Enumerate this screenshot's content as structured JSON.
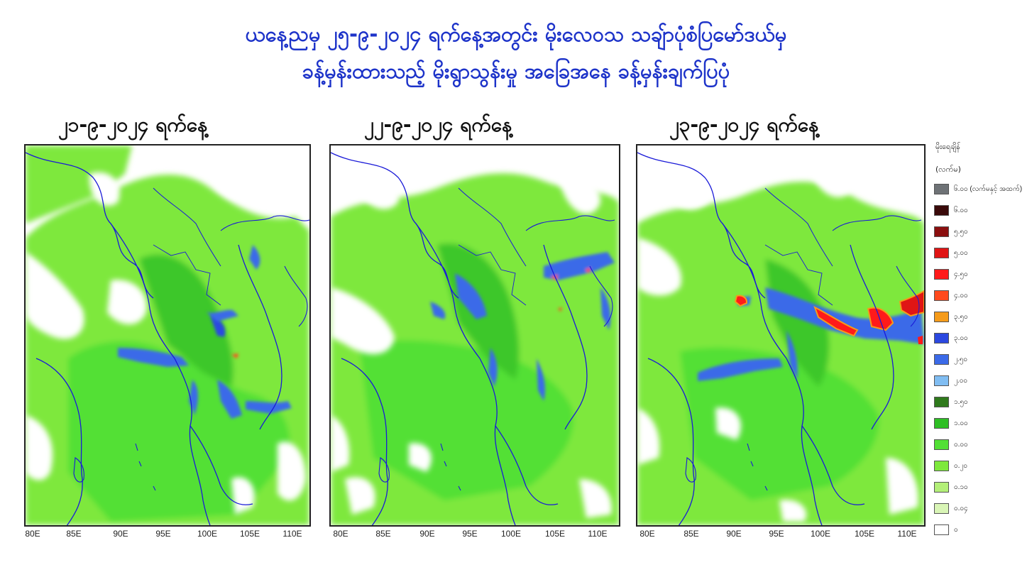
{
  "header": {
    "title_line1": "ယနေ့ညမှ ၂၅-၉-၂၀၂၄ ရက်နေ့အတွင်း မိုးလေဝသ သချ်ာပုံစံပြမော်ဒယ်မှ",
    "title_line2": "ခန့်မှန်းထားသည့် မိုးရွာသွန်းမှု အခြေအနေ ခန့်မှန်းချက်ပြပုံ"
  },
  "panels": [
    {
      "date_label": "၂၁-၉-၂၀၂၄ ရက်နေ့",
      "x_ticks": [
        "80E",
        "85E",
        "90E",
        "95E",
        "100E",
        "105E",
        "110E"
      ]
    },
    {
      "date_label": "၂၂-၉-၂၀၂၄ ရက်နေ့",
      "x_ticks": [
        "80E",
        "85E",
        "90E",
        "95E",
        "100E",
        "105E",
        "110E"
      ]
    },
    {
      "date_label": "၂၃-၉-၂၀၂၄ ရက်နေ့",
      "x_ticks": [
        "80E",
        "85E",
        "90E",
        "95E",
        "100E",
        "105E",
        "110E"
      ]
    }
  ],
  "legend": {
    "title": "မိုးရေချိန်",
    "unit": "(လက်မ)",
    "items": [
      {
        "label": "၆.၀၀ (လက်မနှင့် အထက်)",
        "color": "#6e7276"
      },
      {
        "label": "၆.၀၀",
        "color": "#3a0a0a"
      },
      {
        "label": "၅.၅၀",
        "color": "#8b0f0f"
      },
      {
        "label": "၅.၀၀",
        "color": "#e01515"
      },
      {
        "label": "၄.၅၀",
        "color": "#ff1a1a"
      },
      {
        "label": "၄.၀၀",
        "color": "#ff4a1e"
      },
      {
        "label": "၃.၅၀",
        "color": "#f59b1a"
      },
      {
        "label": "၃.၀၀",
        "color": "#2b48e0"
      },
      {
        "label": "၂.၅၀",
        "color": "#3b6ae8"
      },
      {
        "label": "၂.၀၀",
        "color": "#80bdf2"
      },
      {
        "label": "၁.၅၀",
        "color": "#2f7a1c"
      },
      {
        "label": "၁.၀၀",
        "color": "#2fbf25"
      },
      {
        "label": "၀.၀၀",
        "color": "#52e035"
      },
      {
        "label": "၀.၂၀",
        "color": "#7ee83c"
      },
      {
        "label": "၀.၁၀",
        "color": "#b3ef78"
      },
      {
        "label": "၀.၀၄",
        "color": "#d9f5b6"
      },
      {
        "label": "၀",
        "color": "#ffffff"
      }
    ]
  }
}
